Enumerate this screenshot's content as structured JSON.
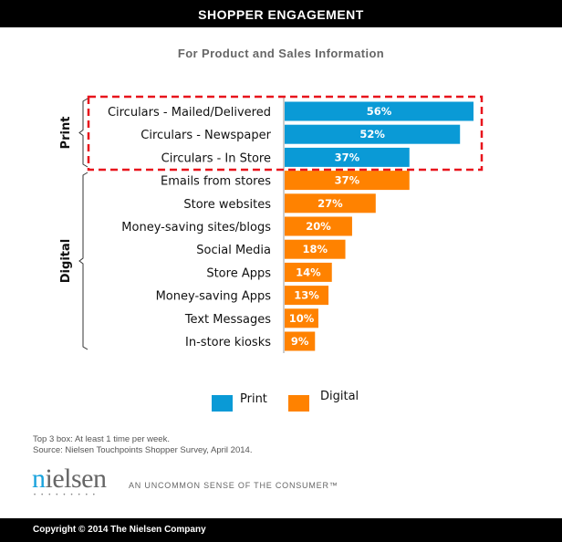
{
  "header": {
    "title": "SHOPPER ENGAGEMENT"
  },
  "chart_data": {
    "type": "bar",
    "orientation": "horizontal",
    "title": "For Product and Sales Information",
    "categories": [
      "Circulars - Mailed/Delivered",
      "Circulars - Newspaper",
      "Circulars - In Store",
      "Emails from stores",
      "Store websites",
      "Money-saving sites/blogs",
      "Social Media",
      "Store Apps",
      "Money-saving Apps",
      "Text Messages",
      "In-store kiosks"
    ],
    "values": [
      56,
      52,
      37,
      37,
      27,
      20,
      18,
      14,
      13,
      10,
      9
    ],
    "data_labels": [
      "56%",
      "52%",
      "37%",
      "37%",
      "27%",
      "20%",
      "18%",
      "14%",
      "13%",
      "10%",
      "9%"
    ],
    "groups": [
      "Print",
      "Print",
      "Print",
      "Digital",
      "Digital",
      "Digital",
      "Digital",
      "Digital",
      "Digital",
      "Digital",
      "Digital"
    ],
    "group_labels": [
      "Print",
      "Digital"
    ],
    "colors": {
      "Print": "#0a9ad6",
      "Digital": "#ff8200"
    },
    "highlight_color": "#e8141c",
    "xlim": [
      0,
      56
    ],
    "legend": [
      {
        "name": "Print"
      },
      {
        "name": "Digital"
      }
    ],
    "legend_position": "bottom",
    "grid": false
  },
  "notes": [
    "Top 3 box: At least 1 time per week.",
    "Source: Nielsen Touchpoints Shopper Survey, April 2014."
  ],
  "logo": {
    "brand": "nielsen",
    "tagline": "AN UNCOMMON SENSE OF THE CONSUMER™"
  },
  "footer": {
    "copyright": "Copyright © 2014 The Nielsen Company"
  }
}
